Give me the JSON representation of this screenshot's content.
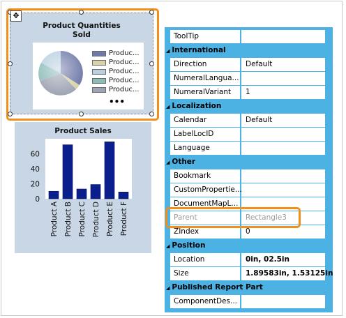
{
  "chart1": {
    "title_line1": "Product Quantities",
    "title_line2": "Sold",
    "legend": [
      "Produc...",
      "Produc...",
      "Produc...",
      "Produc...",
      "Produc..."
    ],
    "legend_more": "•••",
    "pie_colors": [
      "#6f7aa8",
      "#d8d2a6",
      "#b9cfe0",
      "#8cbcb7",
      "#9da4b3"
    ]
  },
  "chart2": {
    "title": "Product Sales",
    "chart_data": {
      "type": "bar",
      "title": "Product Sales",
      "categories": [
        "Product A",
        "Product B",
        "Product C",
        "Product D",
        "Product E",
        "Product F"
      ],
      "values": [
        10,
        72,
        13,
        19,
        76,
        9
      ],
      "ylim": [
        0,
        80
      ],
      "yticks": [
        "0",
        "20",
        "40",
        "60"
      ],
      "bar_color": "#0b1f8c",
      "grid": false
    }
  },
  "move_icon": "✥",
  "properties": {
    "rows": [
      {
        "type": "prop",
        "name": "ToolTip",
        "value": ""
      },
      {
        "type": "section",
        "name": "International"
      },
      {
        "type": "prop",
        "name": "Direction",
        "value": "Default"
      },
      {
        "type": "prop",
        "name": "NumeralLangua...",
        "value": ""
      },
      {
        "type": "prop",
        "name": "NumeralVariant",
        "value": "1"
      },
      {
        "type": "section",
        "name": "Localization"
      },
      {
        "type": "prop",
        "name": "Calendar",
        "value": "Default"
      },
      {
        "type": "prop",
        "name": "LabelLocID",
        "value": ""
      },
      {
        "type": "prop",
        "name": "Language",
        "value": ""
      },
      {
        "type": "section",
        "name": "Other"
      },
      {
        "type": "prop",
        "name": "Bookmark",
        "value": ""
      },
      {
        "type": "prop",
        "name": "CustomPropertie...",
        "value": ""
      },
      {
        "type": "prop",
        "name": "DocumentMapL...",
        "value": ""
      },
      {
        "type": "prop",
        "name": "Parent",
        "value": "Rectangle3",
        "disabled": true
      },
      {
        "type": "prop",
        "name": "ZIndex",
        "value": "0"
      },
      {
        "type": "section",
        "name": "Position"
      },
      {
        "type": "prop",
        "name": "Location",
        "value": "0in, 02.5in",
        "bold": true
      },
      {
        "type": "prop",
        "name": "Size",
        "value": "1.89583in, 1.53125in",
        "bold": true
      },
      {
        "type": "section",
        "name": "Published Report Part"
      },
      {
        "type": "prop",
        "name": "ComponentDes...",
        "value": ""
      }
    ]
  }
}
